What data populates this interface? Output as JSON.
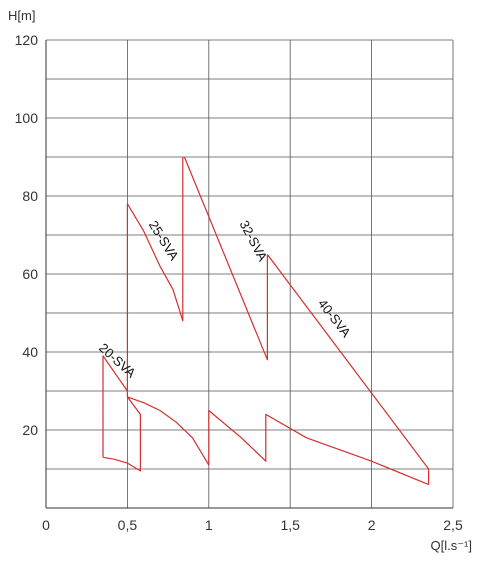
{
  "chart_data": {
    "type": "line",
    "xlabel": "Q[l.s⁻¹]",
    "ylabel": "H[m]",
    "xlim": [
      0,
      2.5
    ],
    "ylim": [
      0,
      120
    ],
    "x_ticks": [
      "0",
      "0,5",
      "1",
      "1,5",
      "2",
      "2,5"
    ],
    "x_tick_values": [
      0,
      0.5,
      1,
      1.5,
      2,
      2.5
    ],
    "y_ticks": [
      "20",
      "40",
      "60",
      "80",
      "100",
      "120"
    ],
    "y_tick_values": [
      20,
      40,
      60,
      80,
      100,
      120
    ],
    "grid": true,
    "line_color": "#d32f2f",
    "series": [
      {
        "name": "20-SVA",
        "label_at": {
          "x": 0.42,
          "y": 37
        },
        "label_angle_deg": 42,
        "points": [
          [
            0.35,
            13
          ],
          [
            0.35,
            39
          ],
          [
            0.5,
            30
          ],
          [
            0.5,
            28.5
          ],
          [
            0.58,
            24
          ],
          [
            0.58,
            9.5
          ],
          [
            0.5,
            11.5
          ],
          [
            0.42,
            12.5
          ],
          [
            0.35,
            13
          ]
        ]
      },
      {
        "name": "25-SVA",
        "label_at": {
          "x": 0.7,
          "y": 68
        },
        "label_angle_deg": 58,
        "points": [
          [
            0.5,
            30
          ],
          [
            0.5,
            78
          ],
          [
            0.6,
            71
          ],
          [
            0.7,
            62
          ],
          [
            0.78,
            56
          ],
          [
            0.84,
            48
          ],
          [
            0.84,
            90
          ]
        ]
      },
      {
        "name": "32-SVA",
        "label_at": {
          "x": 1.25,
          "y": 68
        },
        "label_angle_deg": 62,
        "points": [
          [
            0.85,
            90
          ],
          [
            1.36,
            38
          ],
          [
            1.36,
            65
          ]
        ]
      },
      {
        "name": "40-SVA",
        "label_at": {
          "x": 1.75,
          "y": 48
        },
        "label_angle_deg": 52,
        "points": [
          [
            1.36,
            65
          ],
          [
            2.35,
            10
          ],
          [
            2.35,
            6
          ]
        ]
      },
      {
        "name": "",
        "points": [
          [
            0.5,
            28.5
          ],
          [
            0.6,
            27
          ],
          [
            0.7,
            25
          ],
          [
            0.8,
            22
          ],
          [
            0.9,
            18
          ],
          [
            1.0,
            11
          ]
        ]
      },
      {
        "name": "",
        "points": [
          [
            1.0,
            11
          ],
          [
            1.0,
            25
          ],
          [
            1.2,
            18
          ],
          [
            1.35,
            12
          ],
          [
            1.35,
            24
          ],
          [
            1.6,
            18
          ],
          [
            2.0,
            12
          ],
          [
            2.35,
            6
          ]
        ]
      }
    ]
  }
}
